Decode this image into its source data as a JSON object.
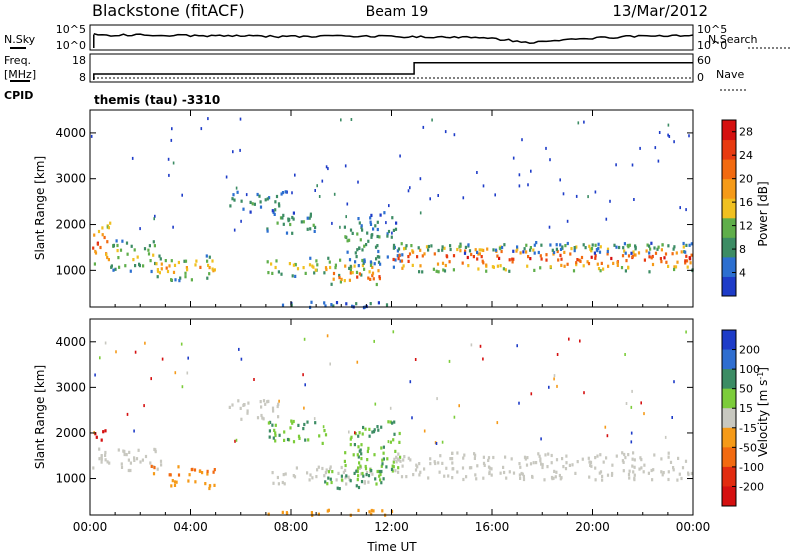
{
  "header": {
    "station": "Blackstone (fitACF)",
    "beam": "Beam 19",
    "date": "13/Mar/2012"
  },
  "noise_panel": {
    "left_label": "N.Sky",
    "right_label": "N.Search",
    "left_ticks": [
      "10^5",
      "10^0"
    ],
    "right_ticks": [
      "10^5",
      "10^0"
    ]
  },
  "freq_panel": {
    "left_label_1": "Freq.",
    "left_label_2": "[MHz]",
    "right_label": "Nave",
    "cpid_label": "CPID",
    "left_ticks": [
      "18",
      "8"
    ],
    "right_ticks": [
      "60",
      "0"
    ],
    "cpid_text": "themis (tau) -3310"
  },
  "time_axis": {
    "title": "Time UT",
    "ticks": [
      "00:00",
      "04:00",
      "08:00",
      "12:00",
      "16:00",
      "20:00",
      "00:00"
    ]
  },
  "colors": {
    "power": [
      "#1e3cc8",
      "#2c6fd0",
      "#3c8c64",
      "#5fae4a",
      "#f0c020",
      "#f59a18",
      "#f26a10",
      "#e83a10",
      "#d51010"
    ],
    "velocity": [
      "#1e3cc8",
      "#2f6ed0",
      "#3c8c64",
      "#7ccc3a",
      "#c8c8c0",
      "#f59a18",
      "#f26a10",
      "#e22c10",
      "#d51010"
    ]
  },
  "chart_data": [
    {
      "type": "line",
      "name": "noise",
      "title": "",
      "x_range_hours": [
        0,
        24
      ],
      "ylabel": "N.Sky",
      "y_scale": "log",
      "ylim": [
        "10^0",
        "10^5"
      ],
      "series": [
        {
          "name": "N.Sky",
          "points": [
            [
              0.15,
              3.2
            ],
            [
              1,
              3.0
            ],
            [
              2,
              3.1
            ],
            [
              3,
              3.0
            ],
            [
              4,
              2.9
            ],
            [
              5,
              2.8
            ],
            [
              6,
              2.9
            ],
            [
              7,
              2.8
            ],
            [
              8,
              2.7
            ],
            [
              9,
              2.8
            ],
            [
              10,
              2.9
            ],
            [
              11,
              2.8
            ],
            [
              12,
              2.7
            ],
            [
              13,
              2.6
            ],
            [
              14,
              2.5
            ],
            [
              15,
              2.6
            ],
            [
              16,
              2.3
            ],
            [
              17,
              1.6
            ],
            [
              17.5,
              1.2
            ],
            [
              18,
              1.6
            ],
            [
              19,
              2.0
            ],
            [
              20,
              2.4
            ],
            [
              21,
              2.6
            ],
            [
              22,
              2.8
            ],
            [
              23,
              3.0
            ],
            [
              24,
              3.1
            ]
          ]
        }
      ]
    },
    {
      "type": "line",
      "name": "frequency",
      "title": "",
      "ylabel": "Freq. [MHz]",
      "ylim": [
        8,
        18
      ],
      "y2label": "Nave",
      "y2lim": [
        0,
        60
      ],
      "series": [
        {
          "name": "Freq.",
          "points": [
            [
              0.15,
              10.5
            ],
            [
              12.9,
              10.5
            ],
            [
              12.9,
              15.2
            ],
            [
              24,
              15.2
            ]
          ]
        }
      ]
    },
    {
      "type": "heatmap",
      "name": "power",
      "ylabel": "Slant Range [km]",
      "ylim": [
        200,
        4500
      ],
      "yticks": [
        1000,
        2000,
        3000,
        4000
      ],
      "x_ticks": [
        "00:00",
        "04:00",
        "08:00",
        "12:00",
        "16:00",
        "20:00",
        "00:00"
      ],
      "colorbar_label": "Power [dB]",
      "colorbar_ticks": [
        4,
        8,
        12,
        16,
        20,
        24,
        28
      ],
      "colorbar_range": [
        0,
        30
      ],
      "regions": [
        {
          "t0": 0.0,
          "t1": 0.8,
          "r0": 1100,
          "r1": 2100,
          "level": 22
        },
        {
          "t0": 0.8,
          "t1": 2.6,
          "r0": 1000,
          "r1": 1700,
          "level": 12
        },
        {
          "t0": 2.6,
          "t1": 5.4,
          "r0": 800,
          "r1": 1350,
          "level": 16
        },
        {
          "t0": 5.5,
          "t1": 7.8,
          "r0": 2300,
          "r1": 2750,
          "level": 8
        },
        {
          "t0": 7.0,
          "t1": 9.0,
          "r0": 1800,
          "r1": 2300,
          "level": 10
        },
        {
          "t0": 7.0,
          "t1": 11.3,
          "r0": 900,
          "r1": 1300,
          "level": 14
        },
        {
          "t0": 9.4,
          "t1": 11.5,
          "r0": 700,
          "r1": 1100,
          "level": 20
        },
        {
          "t0": 10.1,
          "t1": 12.4,
          "r0": 1100,
          "r1": 2300,
          "level": 8
        },
        {
          "t0": 12.0,
          "t1": 24.0,
          "r0": 1000,
          "r1": 1600,
          "level": 22
        },
        {
          "t0": 13.0,
          "t1": 24.0,
          "r0": 1400,
          "r1": 1650,
          "level": 8
        },
        {
          "t0": 7.0,
          "t1": 13.0,
          "r0": 220,
          "r1": 340,
          "level": 6
        }
      ]
    },
    {
      "type": "heatmap",
      "name": "velocity",
      "ylabel": "Slant Range [km]",
      "ylim": [
        200,
        4500
      ],
      "yticks": [
        1000,
        2000,
        3000,
        4000
      ],
      "x_ticks": [
        "00:00",
        "04:00",
        "08:00",
        "12:00",
        "16:00",
        "20:00",
        "00:00"
      ],
      "xlabel": "Time UT",
      "colorbar_label": "Velocity [m s^-1]",
      "colorbar_ticks": [
        200,
        100,
        50,
        15,
        -15,
        -50,
        -100,
        -200
      ],
      "regions": [
        {
          "t0": 0.0,
          "t1": 0.6,
          "r0": 1800,
          "r1": 2100,
          "velocity": -200
        },
        {
          "t0": 0.0,
          "t1": 2.8,
          "r0": 1200,
          "r1": 1700,
          "velocity": 0
        },
        {
          "t0": 2.4,
          "t1": 5.0,
          "r0": 1100,
          "r1": 1350,
          "velocity": -80
        },
        {
          "t0": 3.0,
          "t1": 5.2,
          "r0": 800,
          "r1": 1000,
          "velocity": -60
        },
        {
          "t0": 5.5,
          "t1": 7.6,
          "r0": 2300,
          "r1": 2750,
          "velocity": 0
        },
        {
          "t0": 7.0,
          "t1": 9.4,
          "r0": 1800,
          "r1": 2300,
          "velocity": 30
        },
        {
          "t0": 7.2,
          "t1": 11.2,
          "r0": 900,
          "r1": 1300,
          "velocity": 0
        },
        {
          "t0": 9.3,
          "t1": 11.8,
          "r0": 800,
          "r1": 1200,
          "velocity": 40
        },
        {
          "t0": 10.1,
          "t1": 12.3,
          "r0": 1100,
          "r1": 2300,
          "velocity": 30
        },
        {
          "t0": 12.0,
          "t1": 24.0,
          "r0": 1000,
          "r1": 1600,
          "velocity": 0
        },
        {
          "t0": 7.0,
          "t1": 12.5,
          "r0": 220,
          "r1": 340,
          "velocity": -60
        }
      ]
    }
  ]
}
